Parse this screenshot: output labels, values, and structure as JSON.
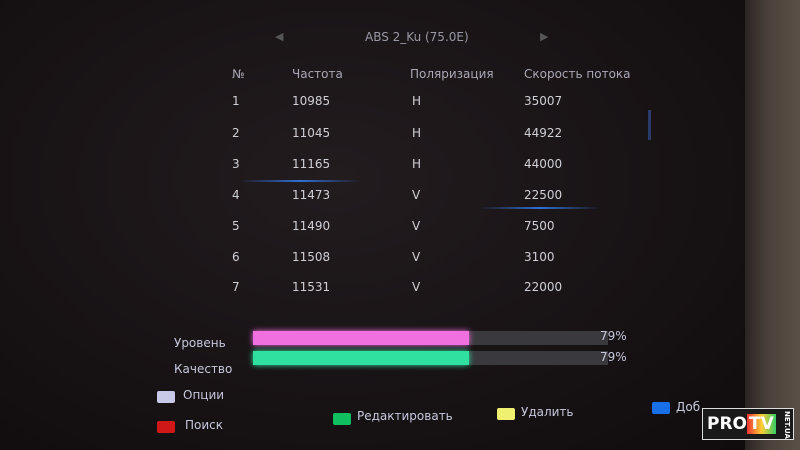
{
  "header": {
    "title": "ABS 2_Ku (75.0E)",
    "prev_icon": "triangle-left",
    "next_icon": "triangle-right"
  },
  "table": {
    "columns": [
      "№",
      "Частота",
      "Поляризация",
      "Скорость потока"
    ],
    "rows": [
      {
        "n": "1",
        "freq": "10985",
        "pol": "H",
        "rate": "35007"
      },
      {
        "n": "2",
        "freq": "11045",
        "pol": "H",
        "rate": "44922"
      },
      {
        "n": "3",
        "freq": "11165",
        "pol": "H",
        "rate": "44000"
      },
      {
        "n": "4",
        "freq": "11473",
        "pol": "V",
        "rate": "22500"
      },
      {
        "n": "5",
        "freq": "11490",
        "pol": "V",
        "rate": "7500"
      },
      {
        "n": "6",
        "freq": "11508",
        "pol": "V",
        "rate": "3100"
      },
      {
        "n": "7",
        "freq": "11531",
        "pol": "V",
        "rate": "22000"
      }
    ],
    "selected_row": 4
  },
  "signal": {
    "level": {
      "label": "Уровень",
      "value": "79%",
      "percent": 79,
      "color": "#f070e0"
    },
    "quality": {
      "label": "Качество",
      "value": "79%",
      "percent": 79,
      "color": "#30e0a0"
    }
  },
  "keys": {
    "options": {
      "label": "Опции",
      "color": "#c8c8e8"
    },
    "search": {
      "label": "Поиск",
      "color": "#d01818"
    },
    "edit": {
      "label": "Редактировать",
      "color": "#10c060"
    },
    "delete": {
      "label": "Удалить",
      "color": "#f0f070"
    },
    "add": {
      "label": "Доб",
      "color": "#1870e8"
    }
  },
  "watermark": {
    "text": "PROTV",
    "sub": "NET.UA"
  }
}
